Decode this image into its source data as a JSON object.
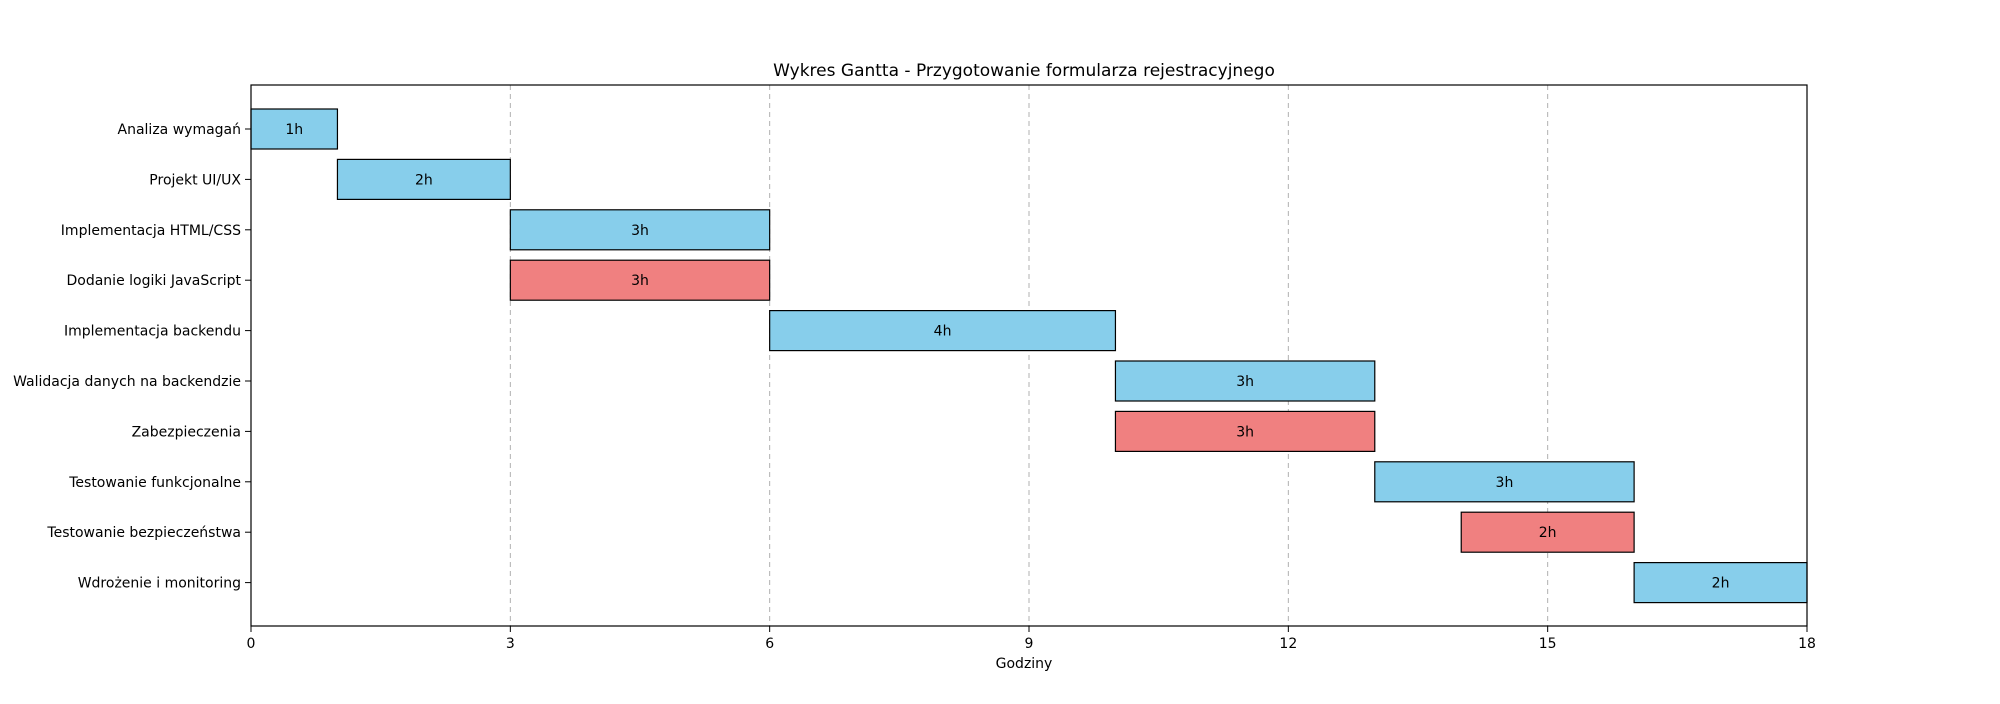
{
  "chart_data": {
    "type": "gantt",
    "title": "Wykres Gantta - Przygotowanie formularza rejestracyjnego",
    "xlabel": "Godziny",
    "ylabel": "",
    "xlim": [
      0,
      18
    ],
    "xticks": [
      0,
      3,
      6,
      9,
      12,
      15,
      18
    ],
    "grid": "x-dashed",
    "colors": {
      "normal": "#87ceeb",
      "highlight": "#f08080",
      "edge": "#000000",
      "grid": "#b0b0b0"
    },
    "tasks": [
      {
        "name": "Analiza wymagań",
        "start": 0,
        "duration": 1,
        "label": "1h",
        "color": "#87ceeb"
      },
      {
        "name": "Projekt UI/UX",
        "start": 1,
        "duration": 2,
        "label": "2h",
        "color": "#87ceeb"
      },
      {
        "name": "Implementacja HTML/CSS",
        "start": 3,
        "duration": 3,
        "label": "3h",
        "color": "#87ceeb"
      },
      {
        "name": "Dodanie logiki JavaScript",
        "start": 3,
        "duration": 3,
        "label": "3h",
        "color": "#f08080"
      },
      {
        "name": "Implementacja backendu",
        "start": 6,
        "duration": 4,
        "label": "4h",
        "color": "#87ceeb"
      },
      {
        "name": "Walidacja danych na backendzie",
        "start": 10,
        "duration": 3,
        "label": "3h",
        "color": "#87ceeb"
      },
      {
        "name": "Zabezpieczenia",
        "start": 10,
        "duration": 3,
        "label": "3h",
        "color": "#f08080"
      },
      {
        "name": "Testowanie funkcjonalne",
        "start": 13,
        "duration": 3,
        "label": "3h",
        "color": "#87ceeb"
      },
      {
        "name": "Testowanie bezpieczeństwa",
        "start": 14,
        "duration": 2,
        "label": "2h",
        "color": "#f08080"
      },
      {
        "name": "Wdrożenie i monitoring",
        "start": 16,
        "duration": 2,
        "label": "2h",
        "color": "#87ceeb"
      }
    ]
  }
}
